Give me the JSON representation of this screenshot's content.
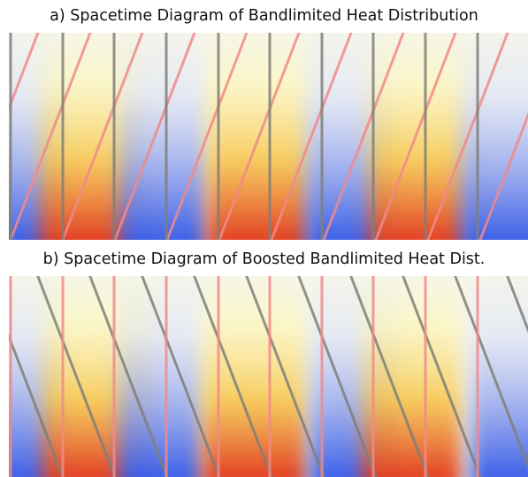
{
  "figure": {
    "panels": [
      {
        "id": "a",
        "title": "a) Spacetime Diagram of Bandlimited Heat Distribution",
        "lines": {
          "vertical_color": "#7f7f78",
          "diagonal_color": "#f08a8a"
        }
      },
      {
        "id": "b",
        "title": "b) Spacetime Diagram of Boosted Bandlimited Heat Dist.",
        "lines": {
          "vertical_color": "#f08a8a",
          "diagonal_color": "#7f7f78"
        }
      }
    ],
    "colors": {
      "background": "#f6f6ec",
      "warm_light": "#fff7b0",
      "warm_mid": "#f7c648",
      "warm_hot": "#e0301e",
      "cool_light": "#dde3f8",
      "cool_mid": "#8fa2ee",
      "cool_dark": "#2f55e6"
    }
  }
}
